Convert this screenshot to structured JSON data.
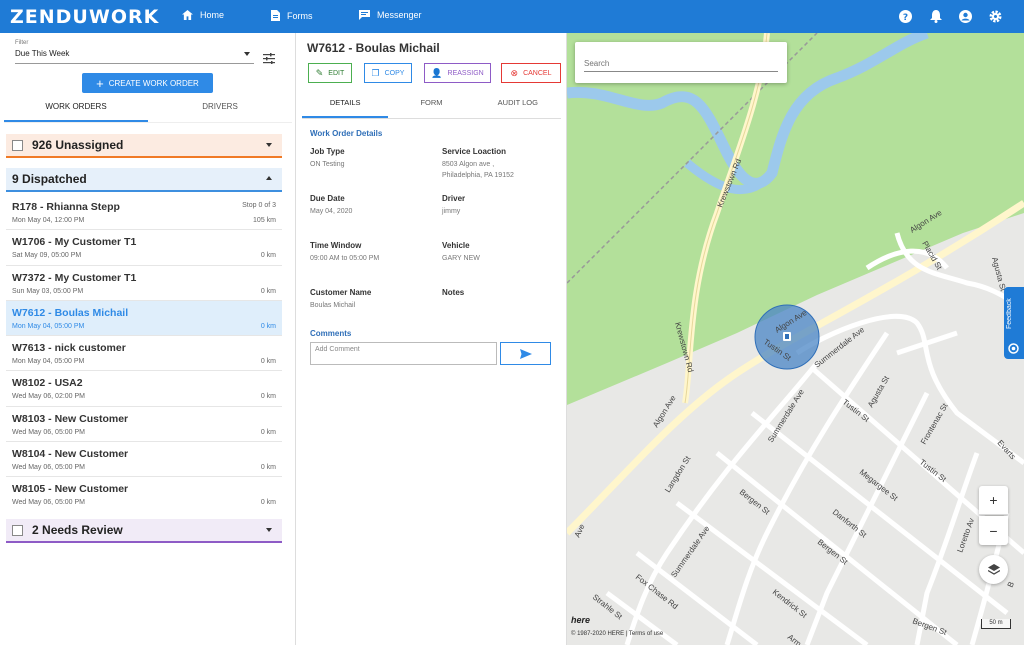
{
  "app": {
    "brand": "ZENDUWORK"
  },
  "nav": {
    "home": "Home",
    "forms": "Forms",
    "messenger": "Messenger"
  },
  "left": {
    "filter_label": "Filter",
    "filter_value": "Due This Week",
    "create_button": "CREATE WORK ORDER",
    "tabs": [
      "WORK ORDERS",
      "DRIVERS"
    ],
    "groups": {
      "unassigned": {
        "count": "926",
        "label": "Unassigned"
      },
      "dispatched": {
        "count": "9",
        "label": "Dispatched"
      },
      "review": {
        "count": "2",
        "label": "Needs Review"
      }
    },
    "orders": [
      {
        "title": "R178 - Rhianna Stepp",
        "date": "Mon May 04, 12:00 PM",
        "stop": "Stop 0 of 3",
        "distance": "105 km"
      },
      {
        "title": "W1706 - My Customer T1",
        "date": "Sat May 09, 05:00 PM",
        "stop": "",
        "distance": "0 km"
      },
      {
        "title": "W7372 - My Customer T1",
        "date": "Sun May 03, 05:00 PM",
        "stop": "",
        "distance": "0 km"
      },
      {
        "title": "W7612 - Boulas Michail",
        "date": "Mon May 04, 05:00 PM",
        "stop": "",
        "distance": "0 km"
      },
      {
        "title": "W7613 - nick customer",
        "date": "Mon May 04, 05:00 PM",
        "stop": "",
        "distance": "0 km"
      },
      {
        "title": "W8102 - USA2",
        "date": "Wed May 06, 02:00 PM",
        "stop": "",
        "distance": "0 km"
      },
      {
        "title": "W8103 - New Customer",
        "date": "Wed May 06, 05:00 PM",
        "stop": "",
        "distance": "0 km"
      },
      {
        "title": "W8104 - New Customer",
        "date": "Wed May 06, 05:00 PM",
        "stop": "",
        "distance": "0 km"
      },
      {
        "title": "W8105 - New Customer",
        "date": "Wed May 06, 05:00 PM",
        "stop": "",
        "distance": "0 km"
      }
    ]
  },
  "detail": {
    "title": "W7612 - Boulas Michail",
    "actions": {
      "edit": "EDIT",
      "copy": "COPY",
      "reassign": "REASSIGN",
      "cancel": "CANCEL"
    },
    "tabs": [
      "DETAILS",
      "FORM",
      "AUDIT LOG"
    ],
    "section_title": "Work Order Details",
    "job_type": {
      "label": "Job Type",
      "value": "ON Testing"
    },
    "service_location": {
      "label": "Service Loaction",
      "line1": "8503 Algon ave ,",
      "line2": "Philadelphia, PA 19152"
    },
    "due_date": {
      "label": "Due Date",
      "value": "May 04, 2020"
    },
    "driver": {
      "label": "Driver",
      "value": "jimmy"
    },
    "time_window": {
      "label": "Time Window",
      "value": "09:00 AM to 05:00 PM"
    },
    "vehicle": {
      "label": "Vehicle",
      "value": "GARY NEW"
    },
    "customer_name": {
      "label": "Customer Name",
      "value": "Boulas Michail"
    },
    "notes": {
      "label": "Notes"
    },
    "comments": {
      "label": "Comments",
      "placeholder": "Add Comment"
    }
  },
  "map": {
    "search_placeholder": "Search",
    "zoom_in": "+",
    "zoom_out": "−",
    "feedback": "Feedback",
    "copyright": "© 1987-2020 HERE | Terms of use",
    "scale": "50 m",
    "logo": "here",
    "streets": {
      "krewstown_upper": "Krewstown Rd",
      "krewstown_lower": "Krewstown Rd",
      "algon_upper": "Algon Ave",
      "algon_mid": "Algon Ave",
      "algon_lower": "Algon Ave",
      "ave_edge": "Ave",
      "tustin_1": "Tustin St",
      "tustin_2": "Tustin St",
      "tustin_3": "Tustin St",
      "summerdale_1": "Summerdale Ave",
      "summerdale_2": "Summerdale Ave",
      "summerdale_3": "Summerdale Ave",
      "agusta_1": "Agusta St",
      "agusta_2": "Agusta St",
      "placid": "Placid St",
      "frontenac": "Frontenac St",
      "evarts": "Evarts",
      "langdon": "Langdon St",
      "bergen_1": "Bergen St",
      "bergen_2": "Bergen St",
      "bergen_3": "Bergen St",
      "megargee": "Megargee St",
      "danforth": "Danforth St",
      "loretto": "Loretto Av",
      "fox_chase": "Fox Chase Rd",
      "kendrick": "Kendrick St",
      "strahle": "Strahle St",
      "arm": "Arm",
      "b_edge": "B"
    }
  },
  "colors": {
    "brand_blue": "#1f7bd6",
    "unassigned": "#f07a26",
    "dispatched": "#3d8fdf",
    "review": "#8e5bc6"
  }
}
